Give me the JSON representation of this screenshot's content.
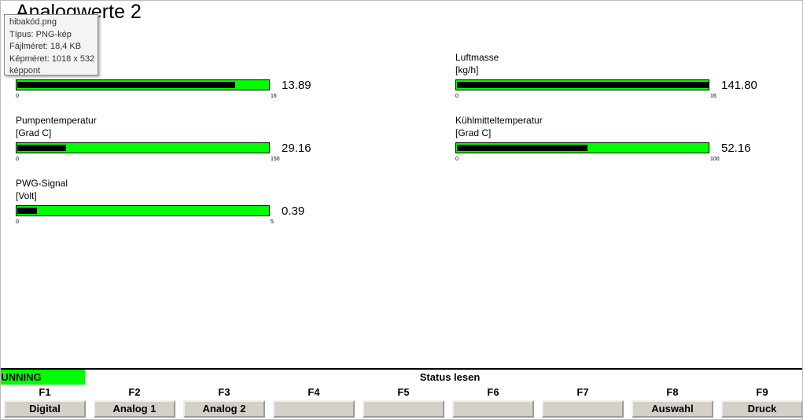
{
  "header": {
    "title": "Analogwerte 2"
  },
  "tooltip": {
    "lines": [
      "hibakód.png",
      "Típus: PNG-kép",
      "Fájlméret: 18,4 KB",
      "Képméret: 1018 x 532",
      "képpont"
    ]
  },
  "gauges": [
    {
      "value": 13.89,
      "min": 0,
      "max": 16
    },
    {
      "label": "Luftmasse",
      "unit": "[kg/h]",
      "value": 141.8,
      "value_label": "141.80",
      "min": 0,
      "max": 16
    },
    {
      "label": "Pumpentemperatur",
      "unit": "[Grad C]",
      "value": 29.16,
      "min": 0,
      "max": 150
    },
    {
      "label": "Kühlmitteltemperatur",
      "unit": "[Grad C]",
      "value": 52.16,
      "min": 0,
      "max": 100
    },
    {
      "label": "PWG-Signal",
      "unit": "[Volt]",
      "value": 0.39,
      "min": 0,
      "max": 5
    }
  ],
  "status": {
    "state": "RUNNING",
    "title": "Status lesen"
  },
  "keys": [
    {
      "key": "F1",
      "label": "Digital"
    },
    {
      "key": "F2",
      "label": "Analog 1"
    },
    {
      "key": "F3",
      "label": "Analog 2"
    },
    {
      "key": "F4"
    },
    {
      "key": "F5"
    },
    {
      "key": "F6"
    },
    {
      "key": "F7"
    },
    {
      "key": "F8",
      "label": "Auswahl"
    },
    {
      "key": "F9",
      "label": "Druck"
    }
  ]
}
